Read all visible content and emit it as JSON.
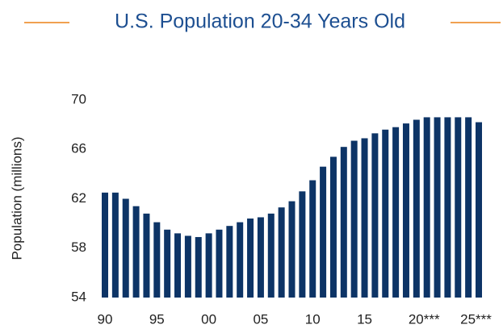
{
  "chart_data": {
    "type": "bar",
    "title": "U.S. Population 20-34 Years Old",
    "y_label": "Population (millions)",
    "categories": [
      "90",
      null,
      null,
      null,
      null,
      "95",
      null,
      null,
      null,
      null,
      "00",
      null,
      null,
      null,
      null,
      "05",
      null,
      null,
      null,
      null,
      "10",
      null,
      null,
      null,
      null,
      "15",
      null,
      null,
      null,
      null,
      "20***",
      null,
      null,
      null,
      null,
      "25***",
      null
    ],
    "values": [
      62.5,
      62.5,
      62.0,
      61.4,
      60.8,
      60.1,
      59.5,
      59.2,
      59.0,
      58.9,
      59.2,
      59.5,
      59.8,
      60.1,
      60.4,
      60.5,
      60.8,
      61.3,
      61.8,
      62.6,
      63.5,
      64.6,
      65.4,
      66.2,
      66.7,
      66.9,
      67.3,
      67.6,
      67.8,
      68.1,
      68.4,
      68.6,
      68.6,
      68.6,
      68.6,
      68.6,
      68.2
    ],
    "color": "#0d3466",
    "ylim": [
      54,
      70
    ],
    "yticks": [
      54,
      58,
      62,
      66,
      70
    ],
    "grid": false
  }
}
